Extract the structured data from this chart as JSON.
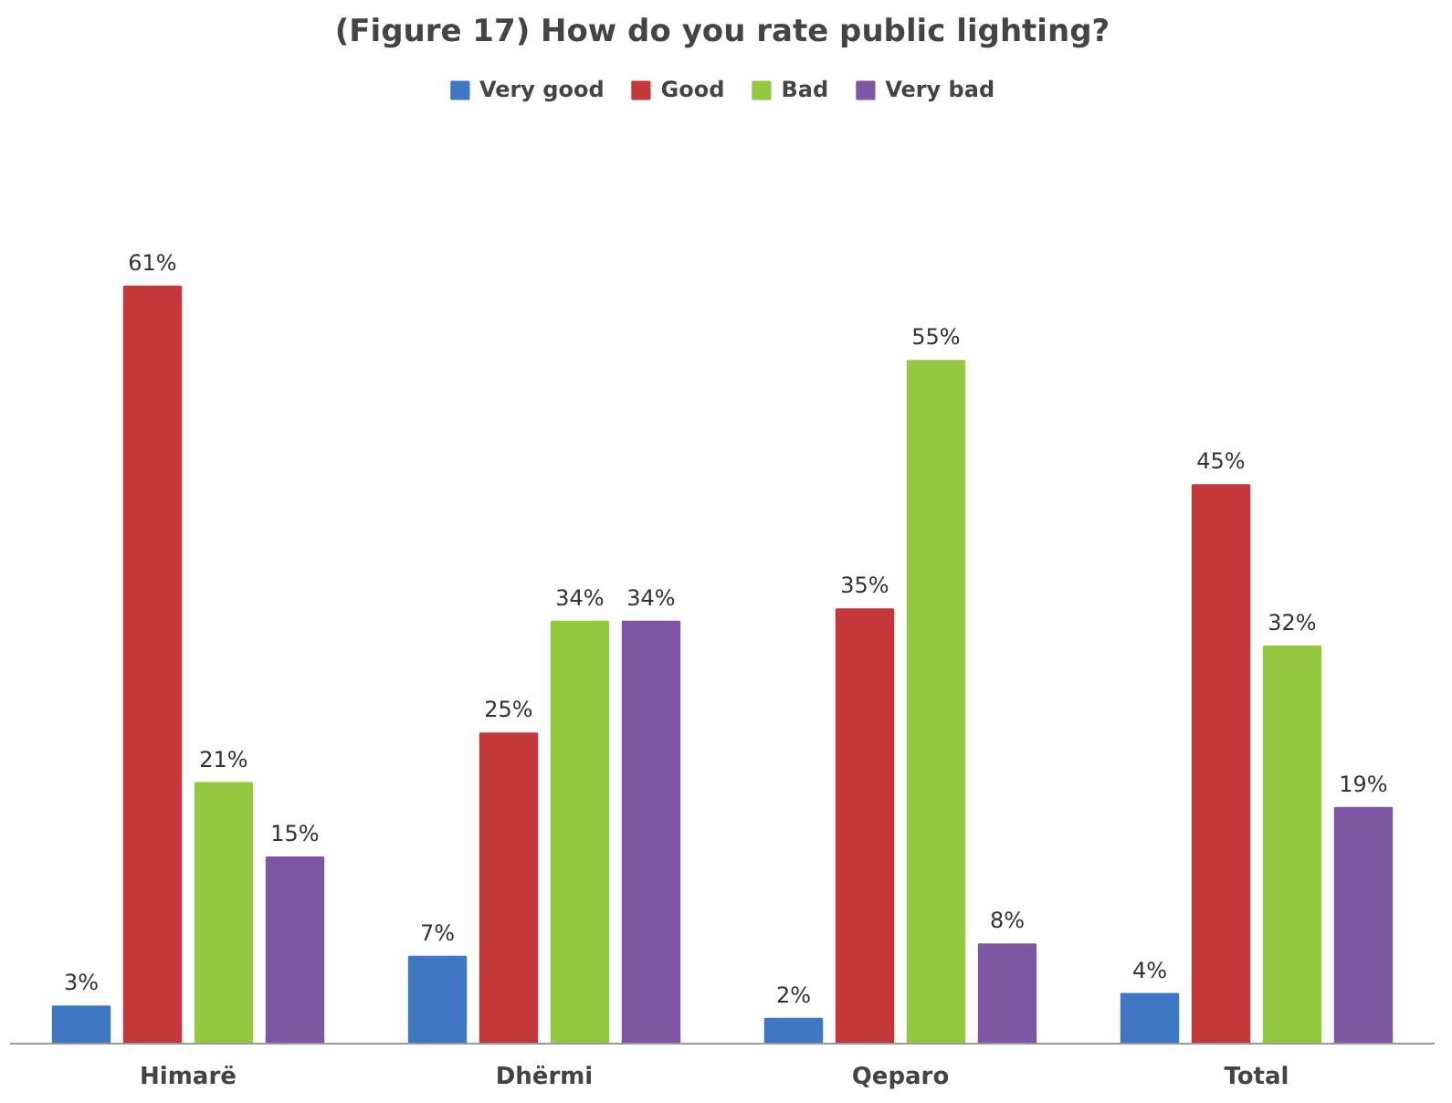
{
  "chart_data": {
    "type": "bar",
    "title": "(Figure 17) How do you rate public lighting?",
    "categories": [
      "Himarë",
      "Dhërmi",
      "Qeparo",
      "Total"
    ],
    "series": [
      {
        "name": "Very good",
        "color": "#3f77c4",
        "values": [
          3,
          7,
          2,
          4
        ],
        "value_labels": [
          "3%",
          "7%",
          "2%",
          "4%"
        ]
      },
      {
        "name": "Good",
        "color": "#c4383a",
        "values": [
          61,
          25,
          35,
          45
        ],
        "value_labels": [
          "61%",
          "25%",
          "35%",
          "45%"
        ]
      },
      {
        "name": "Bad",
        "color": "#93c840",
        "values": [
          21,
          34,
          55,
          32
        ],
        "value_labels": [
          "21%",
          "34%",
          "55%",
          "32%"
        ]
      },
      {
        "name": "Very bad",
        "color": "#7e57a2",
        "values": [
          15,
          34,
          8,
          19
        ],
        "value_labels": [
          "15%",
          "34%",
          "8%",
          "19%"
        ]
      }
    ],
    "legend": "top",
    "grid": false
  }
}
